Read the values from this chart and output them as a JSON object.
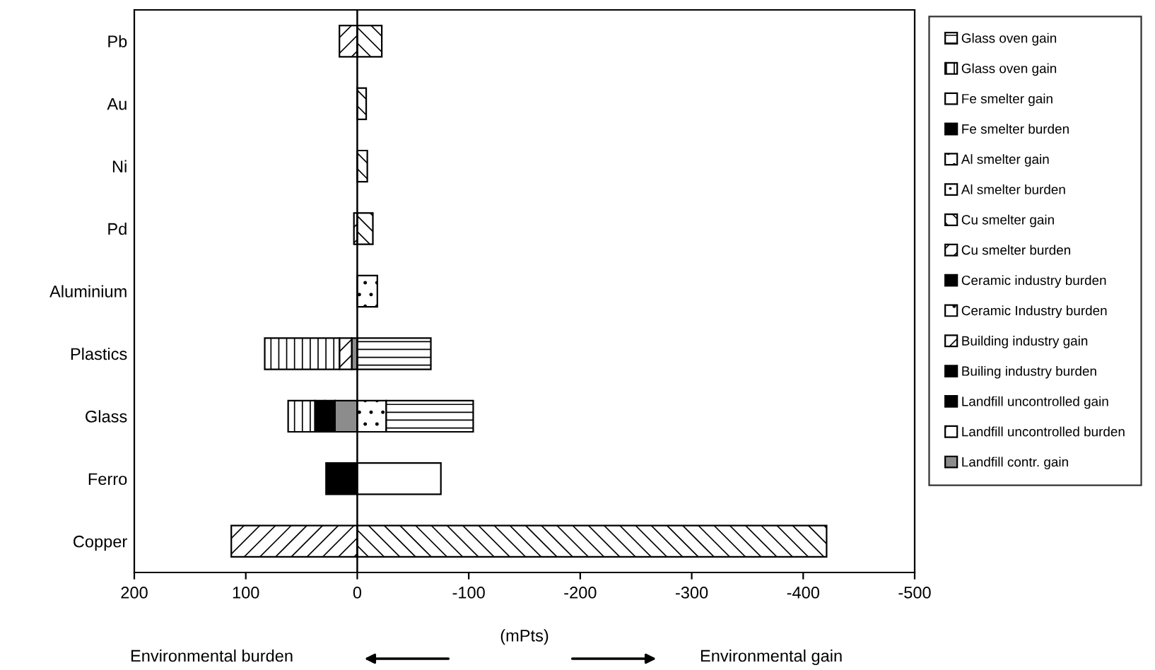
{
  "chart_data": {
    "type": "bar",
    "orientation": "horizontal",
    "stacked": true,
    "categories": [
      "Pb",
      "Au",
      "Ni",
      "Pd",
      "Aluminium",
      "Plastics",
      "Glass",
      "Ferro",
      "Copper"
    ],
    "series": [
      {
        "name": "Landfill contr. gain",
        "color": "#8c8c8c",
        "values": [
          null,
          null,
          null,
          null,
          null,
          5,
          20,
          null,
          null
        ]
      },
      {
        "name": "Landfill uncontrolled burden",
        "color": "#000000",
        "values": [
          null,
          null,
          null,
          null,
          null,
          null,
          null,
          null,
          null
        ]
      },
      {
        "name": "Landfill uncontrolled gain",
        "color": "#000000",
        "values": [
          null,
          null,
          null,
          null,
          null,
          null,
          9,
          null,
          null
        ]
      },
      {
        "name": "Builing industry burden",
        "color": "#000000",
        "values": [
          null,
          null,
          null,
          null,
          null,
          null,
          null,
          null,
          null
        ]
      },
      {
        "name": "Building industry gain",
        "color": "#000000",
        "values": [
          null,
          null,
          null,
          null,
          null,
          null,
          null,
          null,
          null
        ]
      },
      {
        "name": "Ceramic Industry burden",
        "color": "#000000",
        "values": [
          null,
          null,
          null,
          null,
          null,
          null,
          -26,
          null,
          null
        ]
      },
      {
        "name": "Ceramic industry burden",
        "color": "#000000",
        "values": [
          null,
          null,
          null,
          null,
          null,
          null,
          9,
          null,
          null
        ]
      },
      {
        "name": "Cu smelter burden",
        "color": "#000000",
        "values": [
          16,
          null,
          null,
          3,
          null,
          11,
          null,
          null,
          113
        ]
      },
      {
        "name": "Cu smelter gain",
        "color": "#000000",
        "values": [
          -22,
          -8,
          -9,
          -14,
          null,
          null,
          null,
          null,
          -421
        ]
      },
      {
        "name": "Al smelter burden",
        "color": "#000000",
        "values": [
          null,
          null,
          null,
          null,
          null,
          null,
          null,
          null,
          null
        ]
      },
      {
        "name": "Al smelter gain",
        "color": "#000000",
        "values": [
          null,
          null,
          null,
          null,
          -18,
          null,
          null,
          null,
          null
        ]
      },
      {
        "name": "Fe smelter burden",
        "color": "#000000",
        "values": [
          null,
          null,
          null,
          null,
          null,
          null,
          null,
          28,
          null
        ]
      },
      {
        "name": "Fe smelter gain",
        "color": "#ffffff",
        "values": [
          null,
          null,
          null,
          null,
          null,
          null,
          null,
          -75,
          null
        ]
      },
      {
        "name": "Glass oven gain",
        "color": "#000000",
        "values": [
          null,
          null,
          null,
          null,
          null,
          67,
          24,
          null,
          null
        ]
      },
      {
        "name": "Glass oven gain",
        "color": "#000000",
        "values": [
          null,
          null,
          null,
          null,
          null,
          -66,
          -78,
          null,
          null
        ]
      }
    ],
    "xlim": [
      200,
      -500
    ],
    "xticks": [
      200,
      100,
      0,
      -100,
      -200,
      -300,
      -400,
      -500
    ],
    "xlabel": "(mPts)",
    "annotations": [
      "Environmental burden",
      "Environmental gain"
    ],
    "ref_lines": [
      {
        "axis": "x",
        "value": 0,
        "color": "#000000"
      }
    ],
    "grid": false,
    "legend": "right"
  }
}
